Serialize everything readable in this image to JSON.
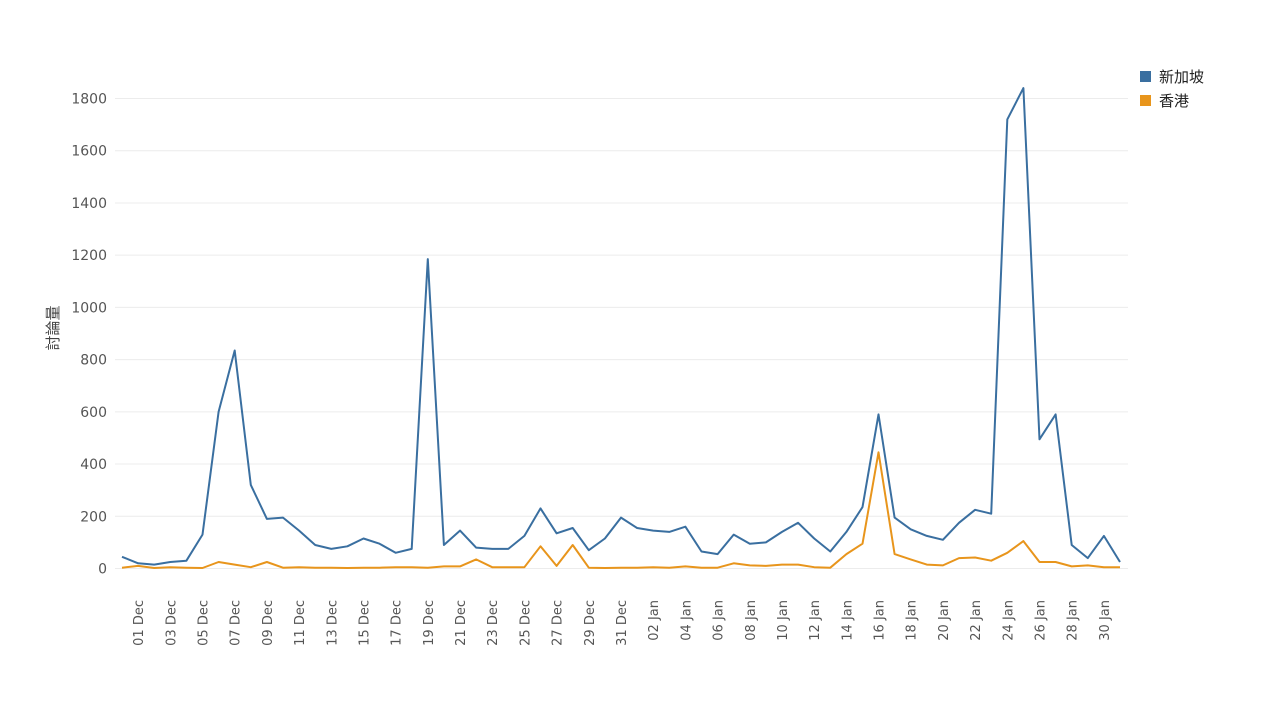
{
  "chart_data": {
    "type": "line",
    "title": "",
    "xlabel": "",
    "ylabel": "討論量",
    "ylim": [
      0,
      1900
    ],
    "yticks": [
      0,
      200,
      400,
      600,
      800,
      1000,
      1200,
      1400,
      1600,
      1800
    ],
    "grid": true,
    "legend_placement": "top-right",
    "x": [
      "30 Nov",
      "01 Dec",
      "02 Dec",
      "03 Dec",
      "04 Dec",
      "05 Dec",
      "06 Dec",
      "07 Dec",
      "08 Dec",
      "09 Dec",
      "10 Dec",
      "11 Dec",
      "12 Dec",
      "13 Dec",
      "14 Dec",
      "15 Dec",
      "16 Dec",
      "17 Dec",
      "18 Dec",
      "19 Dec",
      "20 Dec",
      "21 Dec",
      "22 Dec",
      "23 Dec",
      "24 Dec",
      "25 Dec",
      "26 Dec",
      "27 Dec",
      "28 Dec",
      "29 Dec",
      "30 Dec",
      "31 Dec",
      "01 Jan",
      "02 Jan",
      "03 Jan",
      "04 Jan",
      "05 Jan",
      "06 Jan",
      "07 Jan",
      "08 Jan",
      "09 Jan",
      "10 Jan",
      "11 Jan",
      "12 Jan",
      "13 Jan",
      "14 Jan",
      "15 Jan",
      "16 Jan",
      "17 Jan",
      "18 Jan",
      "19 Jan",
      "20 Jan",
      "21 Jan",
      "22 Jan",
      "23 Jan",
      "24 Jan",
      "25 Jan",
      "26 Jan",
      "27 Jan",
      "28 Jan",
      "29 Jan",
      "30 Jan",
      "31 Jan"
    ],
    "xtick_labels": [
      "01 Dec",
      "03 Dec",
      "05 Dec",
      "07 Dec",
      "09 Dec",
      "11 Dec",
      "13 Dec",
      "15 Dec",
      "17 Dec",
      "19 Dec",
      "21 Dec",
      "23 Dec",
      "25 Dec",
      "27 Dec",
      "29 Dec",
      "31 Dec",
      "02 Jan",
      "04 Jan",
      "06 Jan",
      "08 Jan",
      "10 Jan",
      "12 Jan",
      "14 Jan",
      "16 Jan",
      "18 Jan",
      "20 Jan",
      "22 Jan",
      "24 Jan",
      "26 Jan",
      "28 Jan",
      "30 Jan"
    ],
    "series": [
      {
        "name": "新加坡",
        "color": "#3a6fa0",
        "values": [
          45,
          20,
          15,
          25,
          30,
          130,
          600,
          835,
          320,
          190,
          195,
          145,
          90,
          75,
          85,
          115,
          95,
          60,
          75,
          1185,
          90,
          145,
          80,
          75,
          75,
          125,
          230,
          135,
          155,
          70,
          115,
          195,
          155,
          145,
          140,
          160,
          65,
          55,
          130,
          95,
          100,
          140,
          175,
          115,
          65,
          140,
          235,
          590,
          195,
          150,
          125,
          110,
          175,
          225,
          210,
          1720,
          1840,
          495,
          590,
          90,
          40,
          125,
          25
        ]
      },
      {
        "name": "香港",
        "color": "#e8951c",
        "values": [
          3,
          10,
          2,
          5,
          3,
          2,
          25,
          15,
          5,
          25,
          3,
          5,
          3,
          3,
          2,
          3,
          3,
          5,
          5,
          3,
          8,
          8,
          35,
          5,
          5,
          5,
          85,
          10,
          90,
          3,
          2,
          3,
          3,
          5,
          3,
          8,
          3,
          3,
          20,
          12,
          10,
          15,
          15,
          5,
          3,
          55,
          95,
          445,
          55,
          35,
          15,
          12,
          40,
          42,
          30,
          60,
          105,
          25,
          25,
          8,
          12,
          5,
          5
        ]
      }
    ]
  }
}
